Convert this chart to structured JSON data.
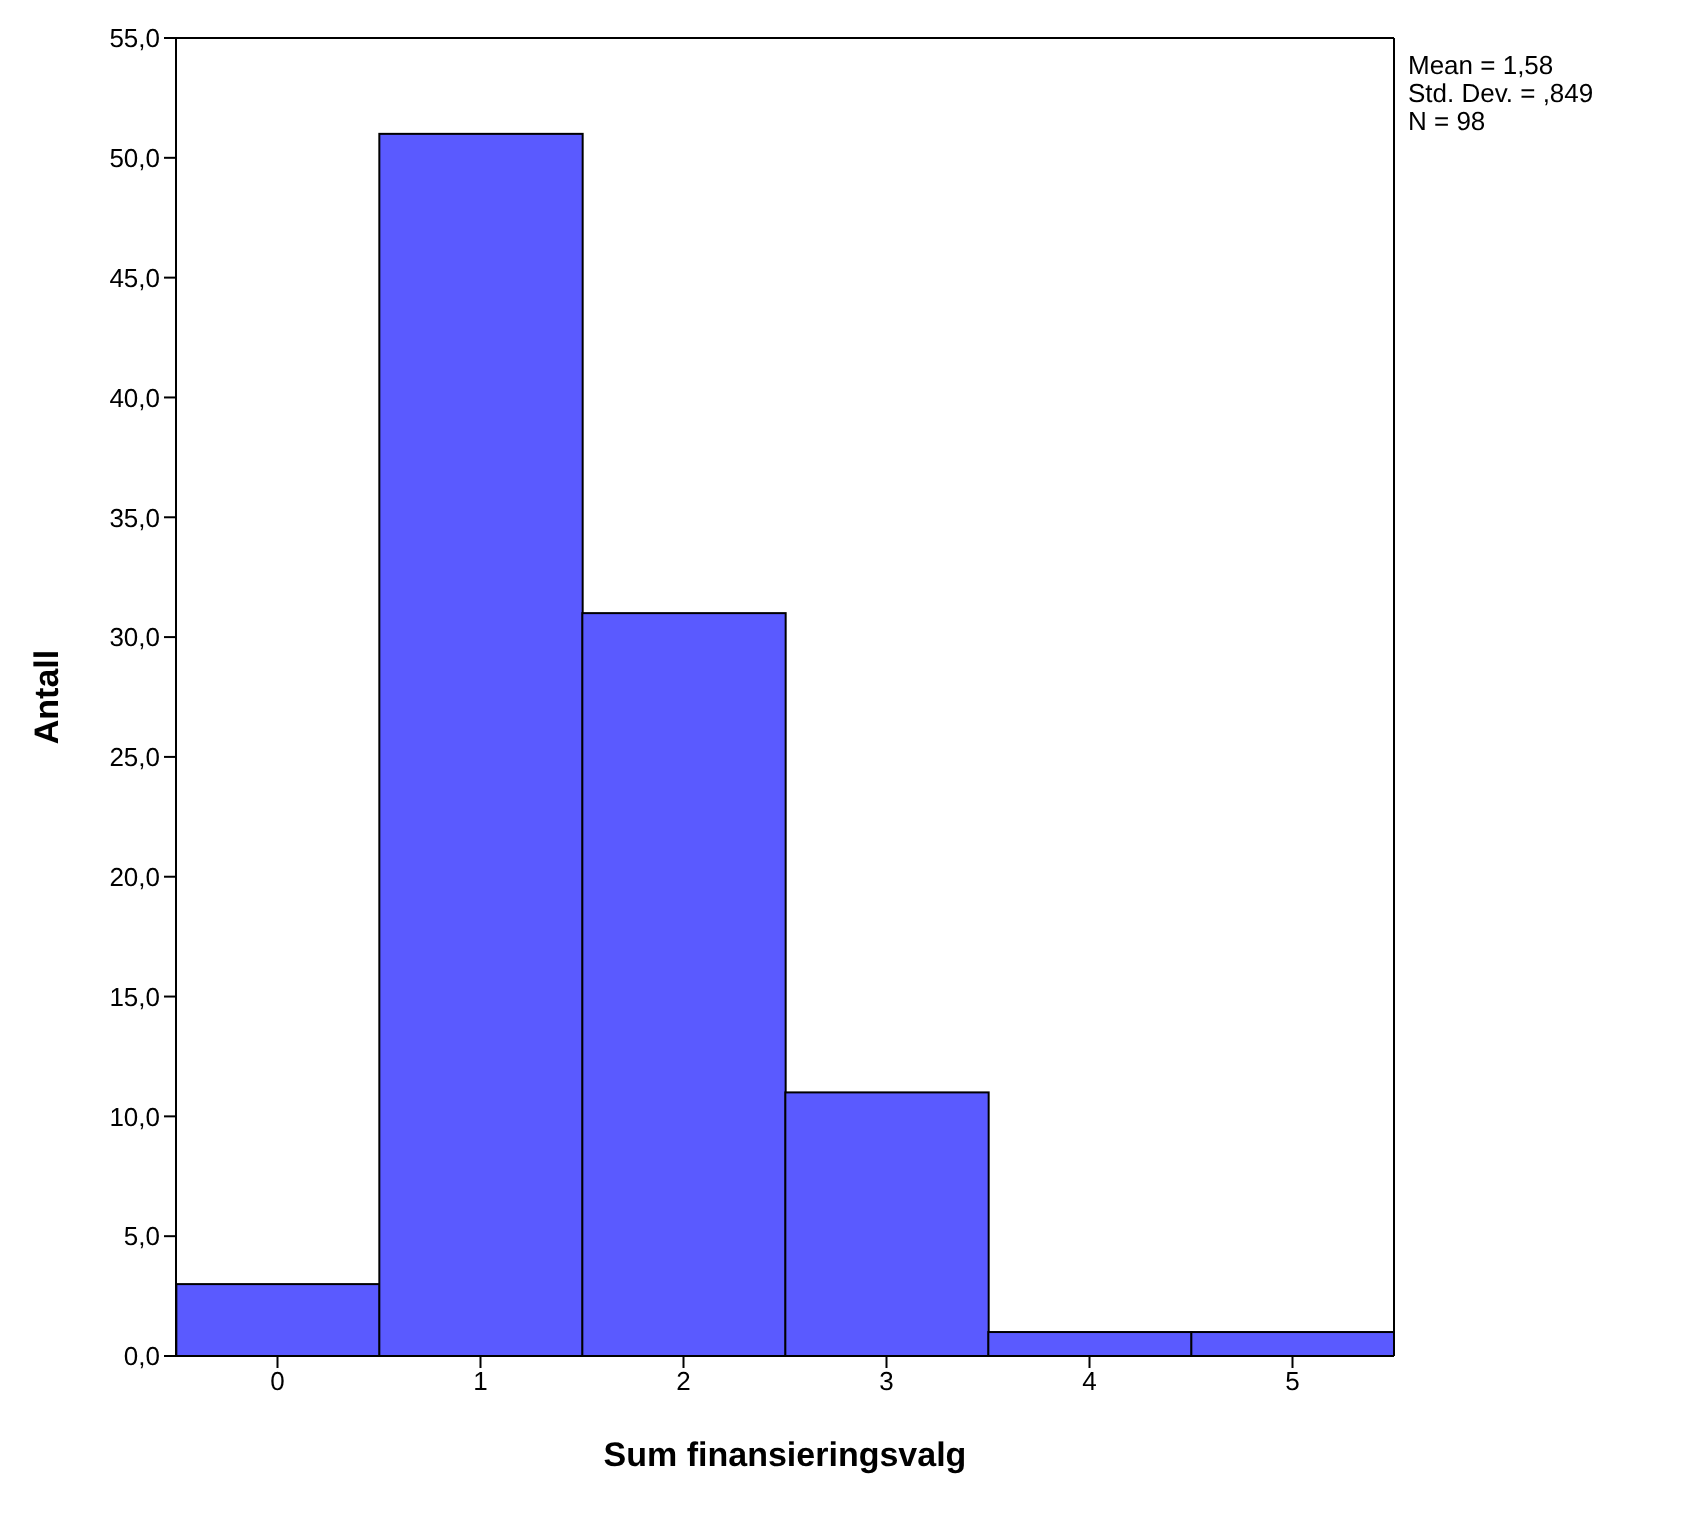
{
  "chart_data": {
    "type": "histogram",
    "xlabel": "Sum finansieringsvalg",
    "ylabel": "Antall",
    "bins": [
      -0.5,
      0.5,
      1.5,
      2.5,
      3.5,
      4.5,
      5.5
    ],
    "values": [
      3,
      51,
      31,
      11,
      1,
      1
    ],
    "color": "#5a5aff",
    "xlim": [
      -0.5,
      5.5
    ],
    "xticks": [
      0,
      1,
      2,
      3,
      4,
      5
    ],
    "ylim": [
      0,
      55
    ],
    "yticks": [
      {
        "value": 0,
        "label": "0,0"
      },
      {
        "value": 5,
        "label": "5,0"
      },
      {
        "value": 10,
        "label": "10,0"
      },
      {
        "value": 15,
        "label": "15,0"
      },
      {
        "value": 20,
        "label": "20,0"
      },
      {
        "value": 25,
        "label": "25,0"
      },
      {
        "value": 30,
        "label": "30,0"
      },
      {
        "value": 35,
        "label": "35,0"
      },
      {
        "value": 40,
        "label": "40,0"
      },
      {
        "value": 45,
        "label": "45,0"
      },
      {
        "value": 50,
        "label": "50,0"
      },
      {
        "value": 55,
        "label": "55,0"
      }
    ],
    "annotations": [
      "Mean = 1,58",
      "Std. Dev. = ,849",
      "N = 98"
    ],
    "grid": false
  }
}
